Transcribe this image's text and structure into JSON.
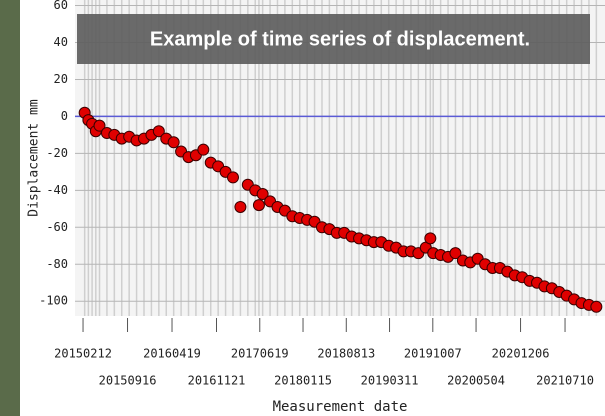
{
  "chart_data": {
    "type": "scatter",
    "title": "Example of time series of displacement.",
    "ylabel": "Displacement mm",
    "xlabel": "Measurement date",
    "ylim": [
      -108,
      63
    ],
    "yticks": [
      -100,
      -80,
      -60,
      -40,
      -20,
      0,
      20,
      40,
      60
    ],
    "xlim": [
      "2015-01-04",
      "2022-01-20"
    ],
    "xticks": [
      {
        "value": "2015-02-12",
        "label": "20150212"
      },
      {
        "value": "2015-09-16",
        "label": "20150916"
      },
      {
        "value": "2016-04-19",
        "label": "20160419"
      },
      {
        "value": "2016-11-21",
        "label": "20161121"
      },
      {
        "value": "2017-06-19",
        "label": "20170619"
      },
      {
        "value": "2018-01-15",
        "label": "20180115"
      },
      {
        "value": "2018-08-13",
        "label": "20180813"
      },
      {
        "value": "2019-03-11",
        "label": "20190311"
      },
      {
        "value": "2019-10-07",
        "label": "20191007"
      },
      {
        "value": "2020-05-04",
        "label": "20200504"
      },
      {
        "value": "2020-12-06",
        "label": "20201206"
      },
      {
        "value": "2021-07-10",
        "label": "20210710"
      }
    ],
    "reference_line": 0,
    "reference_color": "#5b5bd6",
    "grid": true,
    "series": [
      {
        "color": "#e00000",
        "x": [
          "2015-02-20",
          "2015-03-10",
          "2015-03-28",
          "2015-04-15",
          "2015-05-03",
          "2015-06-08",
          "2015-07-14",
          "2015-08-19",
          "2015-09-24",
          "2015-10-30",
          "2015-12-05",
          "2016-01-10",
          "2016-02-15",
          "2016-03-22",
          "2016-04-27",
          "2016-06-02",
          "2016-07-08",
          "2016-08-13",
          "2016-09-18",
          "2016-10-24",
          "2016-11-29",
          "2017-01-04",
          "2017-02-09",
          "2017-03-17",
          "2017-04-22",
          "2017-05-28",
          "2017-06-15",
          "2017-07-03",
          "2017-08-08",
          "2017-09-13",
          "2017-10-19",
          "2017-11-24",
          "2017-12-30",
          "2018-02-04",
          "2018-03-12",
          "2018-04-17",
          "2018-05-23",
          "2018-06-28",
          "2018-08-03",
          "2018-09-08",
          "2018-10-14",
          "2018-11-19",
          "2018-12-25",
          "2019-01-30",
          "2019-03-07",
          "2019-04-12",
          "2019-05-18",
          "2019-06-23",
          "2019-07-29",
          "2019-09-03",
          "2019-09-25",
          "2019-10-09",
          "2019-11-14",
          "2019-12-20",
          "2020-01-25",
          "2020-03-01",
          "2020-04-06",
          "2020-05-12",
          "2020-06-17",
          "2020-07-23",
          "2020-08-28",
          "2020-10-03",
          "2020-11-08",
          "2020-12-14",
          "2021-01-19",
          "2021-02-24",
          "2021-04-01",
          "2021-05-07",
          "2021-06-12",
          "2021-07-18",
          "2021-08-23",
          "2021-09-28",
          "2021-11-03",
          "2021-12-09"
        ],
        "values": [
          2,
          -2,
          -4,
          -8,
          -5,
          -9,
          -10,
          -12,
          -11,
          -13,
          -12,
          -10,
          -8,
          -12,
          -14,
          -19,
          -22,
          -21,
          -18,
          -25,
          -27,
          -30,
          -33,
          -49,
          -37,
          -40,
          -48,
          -42,
          -46,
          -49,
          -51,
          -54,
          -55,
          -56,
          -57,
          -60,
          -61,
          -63,
          -63,
          -65,
          -66,
          -67,
          -68,
          -68,
          -70,
          -71,
          -73,
          -73,
          -74,
          -71,
          -66,
          -74,
          -75,
          -76,
          -74,
          -78,
          -79,
          -77,
          -80,
          -82,
          -82,
          -84,
          -86,
          -87,
          -89,
          -90,
          -92,
          -93,
          -95,
          -97,
          -99,
          -101,
          -102,
          -103
        ]
      }
    ]
  }
}
